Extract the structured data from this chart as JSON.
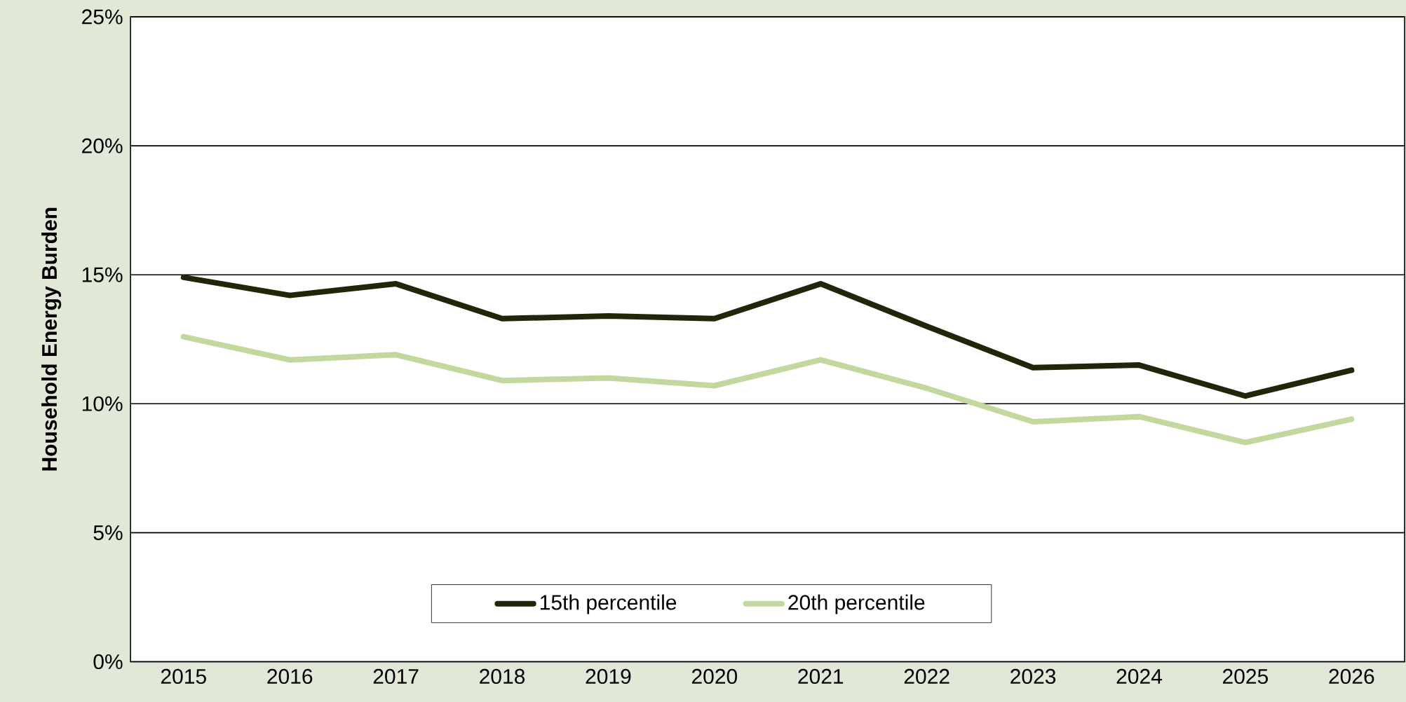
{
  "chart_data": {
    "type": "line",
    "ylabel": "Household Energy Burden",
    "categories": [
      "2015",
      "2016",
      "2017",
      "2018",
      "2019",
      "2020",
      "2021",
      "2022",
      "2023",
      "2024",
      "2025",
      "2026"
    ],
    "series": [
      {
        "name": "15th percentile",
        "color": "#1f2708",
        "values": [
          14.9,
          14.2,
          14.65,
          13.3,
          13.4,
          13.3,
          14.65,
          13.0,
          11.4,
          11.5,
          10.3,
          11.3
        ]
      },
      {
        "name": "20th percentile",
        "color": "#c2d89e",
        "values": [
          12.6,
          11.7,
          11.9,
          10.9,
          11.0,
          10.7,
          11.7,
          10.6,
          9.3,
          9.5,
          8.5,
          9.4
        ]
      }
    ],
    "ylim": [
      0,
      25
    ],
    "yticks": [
      {
        "value": 0,
        "label": "0%"
      },
      {
        "value": 5,
        "label": "5%"
      },
      {
        "value": 10,
        "label": "10%"
      },
      {
        "value": 15,
        "label": "15%"
      },
      {
        "value": 20,
        "label": "20%"
      },
      {
        "value": 25,
        "label": "25%"
      }
    ],
    "grid": "y",
    "legend": "bottom",
    "marker": "none",
    "line_style": "solid"
  }
}
